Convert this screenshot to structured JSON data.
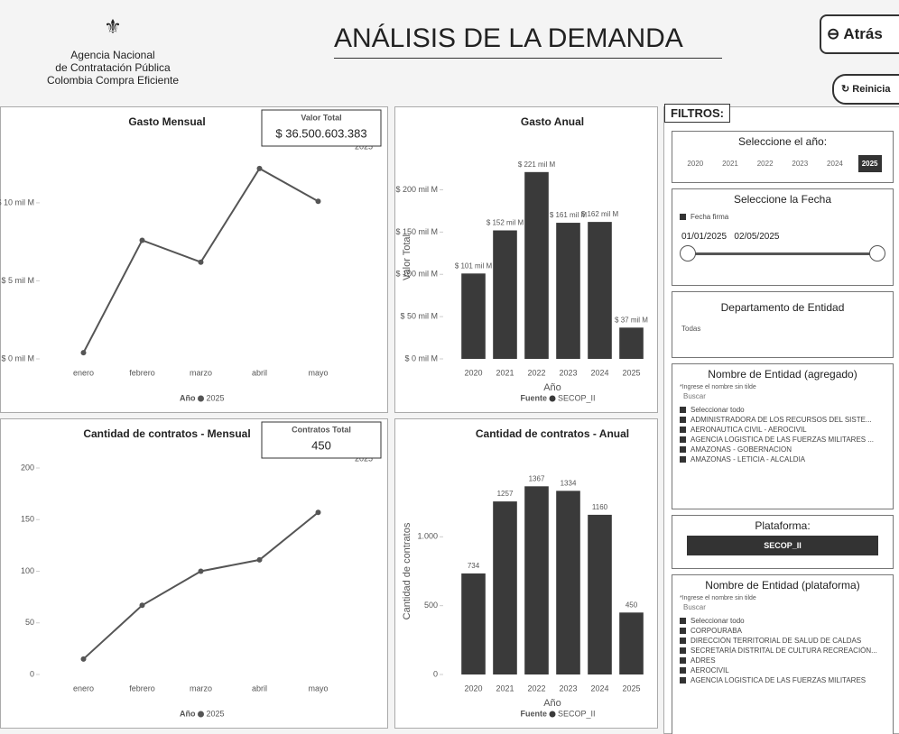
{
  "header": {
    "agency": [
      "Agencia Nacional",
      "de Contratación Pública",
      "Colombia Compra Eficiente"
    ],
    "title": "ANÁLISIS DE LA DEMANDA",
    "back": "Atrás",
    "reset": "Reinicia"
  },
  "chart_data": [
    {
      "type": "line",
      "title": "Gasto Mensual",
      "categories": [
        "enero",
        "febrero",
        "marzo",
        "abril",
        "mayo"
      ],
      "series": [
        {
          "name": "2025",
          "color": "#555555",
          "values": [
            0.4,
            7.6,
            6.2,
            12.2,
            10.1
          ]
        }
      ],
      "legend_title": "Año",
      "ylim": [
        0,
        13
      ],
      "yticks": [
        {
          "value": 0,
          "label": "$ 0 mil M"
        },
        {
          "value": 5,
          "label": "$ 5 mil M"
        },
        {
          "value": 10,
          "label": "$ 10 mil M"
        }
      ],
      "card": {
        "label": "Valor Total",
        "value": "$ 36.500.603.383"
      }
    },
    {
      "type": "bar",
      "title": "Gasto Anual",
      "categories": [
        "2020",
        "2021",
        "2022",
        "2023",
        "2024",
        "2025"
      ],
      "series": [
        {
          "name": "SECOP_II",
          "color": "#3a3a3a",
          "values": [
            101,
            152,
            221,
            161,
            162,
            37
          ],
          "value_labels": [
            "$ 101 mil M",
            "$ 152 mil M",
            "$ 221 mil M",
            "$ 161 mil M",
            "$ 162 mil M",
            "$ 37 mil M"
          ]
        }
      ],
      "legend_title": "Fuente",
      "x_label": "Año",
      "y_label": "Valor Total",
      "ylim": [
        0,
        240
      ],
      "yticks": [
        {
          "value": 0,
          "label": "$ 0 mil M"
        },
        {
          "value": 50,
          "label": "$ 50 mil M"
        },
        {
          "value": 100,
          "label": "$ 100 mil M"
        },
        {
          "value": 150,
          "label": "$ 150 mil M"
        },
        {
          "value": 200,
          "label": "$ 200 mil M"
        }
      ]
    },
    {
      "type": "line",
      "title": "Cantidad de contratos - Mensual",
      "categories": [
        "enero",
        "febrero",
        "marzo",
        "abril",
        "mayo"
      ],
      "series": [
        {
          "name": "2025",
          "color": "#555555",
          "values": [
            15,
            67,
            100,
            111,
            157
          ]
        }
      ],
      "legend_title": "Año",
      "ylim": [
        0,
        200
      ],
      "yticks": [
        0,
        50,
        100,
        150,
        200
      ],
      "card": {
        "label": "Contratos Total",
        "value": "450"
      }
    },
    {
      "type": "bar",
      "title": "Cantidad de contratos - Anual",
      "categories": [
        "2020",
        "2021",
        "2022",
        "2023",
        "2024",
        "2025"
      ],
      "series": [
        {
          "name": "SECOP_II",
          "color": "#3a3a3a",
          "values": [
            734,
            1257,
            1367,
            1334,
            1160,
            450
          ]
        }
      ],
      "legend_title": "Fuente",
      "x_label": "Año",
      "y_label": "Cantidad de contratos",
      "ylim": [
        0,
        1500
      ],
      "yticks": [
        0,
        500,
        {
          "value": 1000,
          "label": "1.000"
        }
      ]
    }
  ],
  "filters": {
    "title": "FILTROS:",
    "year": {
      "title": "Seleccione el año:",
      "options": [
        "2020",
        "2021",
        "2022",
        "2023",
        "2024",
        "2025"
      ],
      "selected": "2025"
    },
    "date": {
      "title": "Seleccione la Fecha",
      "field": "Fecha firma",
      "from": "01/01/2025",
      "to": "02/05/2025"
    },
    "department": {
      "title": "Departamento de Entidad",
      "value": "Todas"
    },
    "entity": {
      "title": "Nombre de Entidad (agregado)",
      "hint": "*Ingrese el nombre sin tilde",
      "search": "Buscar",
      "items": [
        "Seleccionar todo",
        "ADMINISTRADORA DE LOS RECURSOS DEL SISTE...",
        "AERONAUTICA CIVIL - AEROCIVIL",
        "AGENCIA LOGISTICA DE LAS FUERZAS MILITARES ...",
        "AMAZONAS - GOBERNACION",
        "AMAZONAS - LETICIA - ALCALDIA"
      ]
    },
    "platform": {
      "title": "Plataforma:",
      "value": "SECOP_II"
    },
    "entity_platform": {
      "title": "Nombre de Entidad (plataforma)",
      "hint": "*Ingrese el nombre sin tilde",
      "search": "Buscar",
      "items": [
        "Seleccionar todo",
        "CORPOURABA",
        "DIRECCIÓN TERRITORIAL DE SALUD DE CALDAS",
        "SECRETARÍA DISTRITAL DE CULTURA RECREACIÓN...",
        "ADRES",
        "AEROCIVIL",
        "AGENCIA LOGISTICA DE LAS FUERZAS MILITARES"
      ]
    }
  }
}
